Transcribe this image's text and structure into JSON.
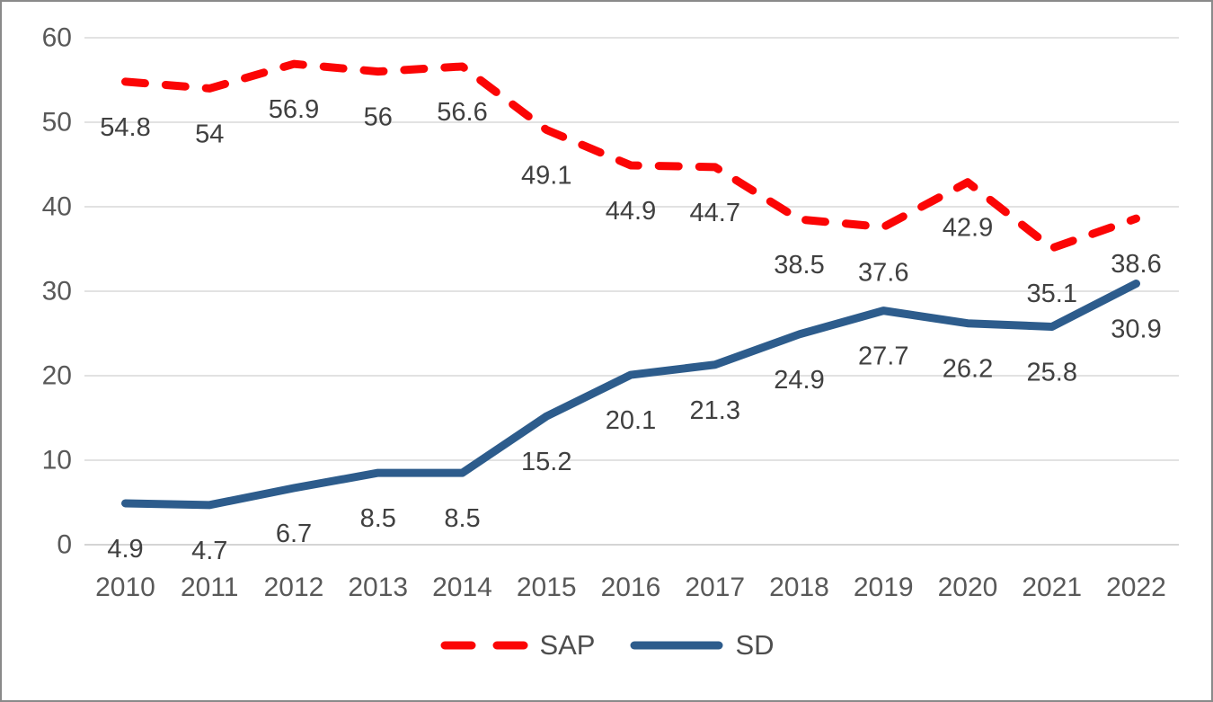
{
  "chart_data": {
    "type": "line",
    "title": "",
    "xlabel": "",
    "ylabel": "",
    "x": [
      "2010",
      "2011",
      "2012",
      "2013",
      "2014",
      "2015",
      "2016",
      "2017",
      "2018",
      "2019",
      "2020",
      "2021",
      "2022"
    ],
    "series": [
      {
        "name": "SAP",
        "style": "dashed",
        "color": "#fb0505",
        "values": [
          54.8,
          54,
          56.9,
          56,
          56.6,
          49.1,
          44.9,
          44.7,
          38.5,
          37.6,
          42.9,
          35.1,
          38.6
        ]
      },
      {
        "name": "SD",
        "style": "solid",
        "color": "#2d5c8c",
        "values": [
          4.9,
          4.7,
          6.7,
          8.5,
          8.5,
          15.2,
          20.1,
          21.3,
          24.9,
          27.7,
          26.2,
          25.8,
          30.9
        ]
      }
    ],
    "ylim": [
      0,
      60
    ],
    "yticks": [
      0,
      10,
      20,
      30,
      40,
      50,
      60
    ],
    "grid": true,
    "data_labels_position": "below",
    "legend_position": "bottom",
    "colors": {
      "gridline": "#d9d9d9",
      "axis_line": "#c6c6c6",
      "axis_text": "#595959",
      "data_label": "#404040",
      "legend_text": "#4d4d4d"
    }
  }
}
